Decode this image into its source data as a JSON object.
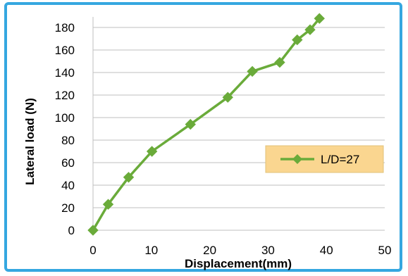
{
  "chart_data": {
    "type": "line",
    "title": "",
    "xlabel": "Displacement(mm)",
    "ylabel": "Lateral load (N)",
    "xlim": [
      0,
      50
    ],
    "ylim": [
      0,
      180
    ],
    "xticks": [
      "0",
      "10",
      "20",
      "30",
      "40",
      "50"
    ],
    "yticks": [
      "0",
      "20",
      "40",
      "60",
      "80",
      "100",
      "120",
      "140",
      "160",
      "180"
    ],
    "grid": "horizontal",
    "legend_position": "right",
    "series": [
      {
        "name": "L/D=27",
        "color": "#6aab3a",
        "marker": "diamond",
        "points": [
          [
            0,
            0
          ],
          [
            2.6,
            23
          ],
          [
            6.1,
            47
          ],
          [
            10.1,
            70
          ],
          [
            16.7,
            94
          ],
          [
            23.1,
            118
          ],
          [
            27.3,
            141
          ],
          [
            32.0,
            149
          ],
          [
            35.0,
            169
          ],
          [
            37.2,
            178
          ],
          [
            38.8,
            188
          ]
        ]
      }
    ],
    "colors": {
      "frame": "#35a7e0",
      "legend_fill": "#fad690",
      "grid": "#bfbfbf"
    }
  }
}
